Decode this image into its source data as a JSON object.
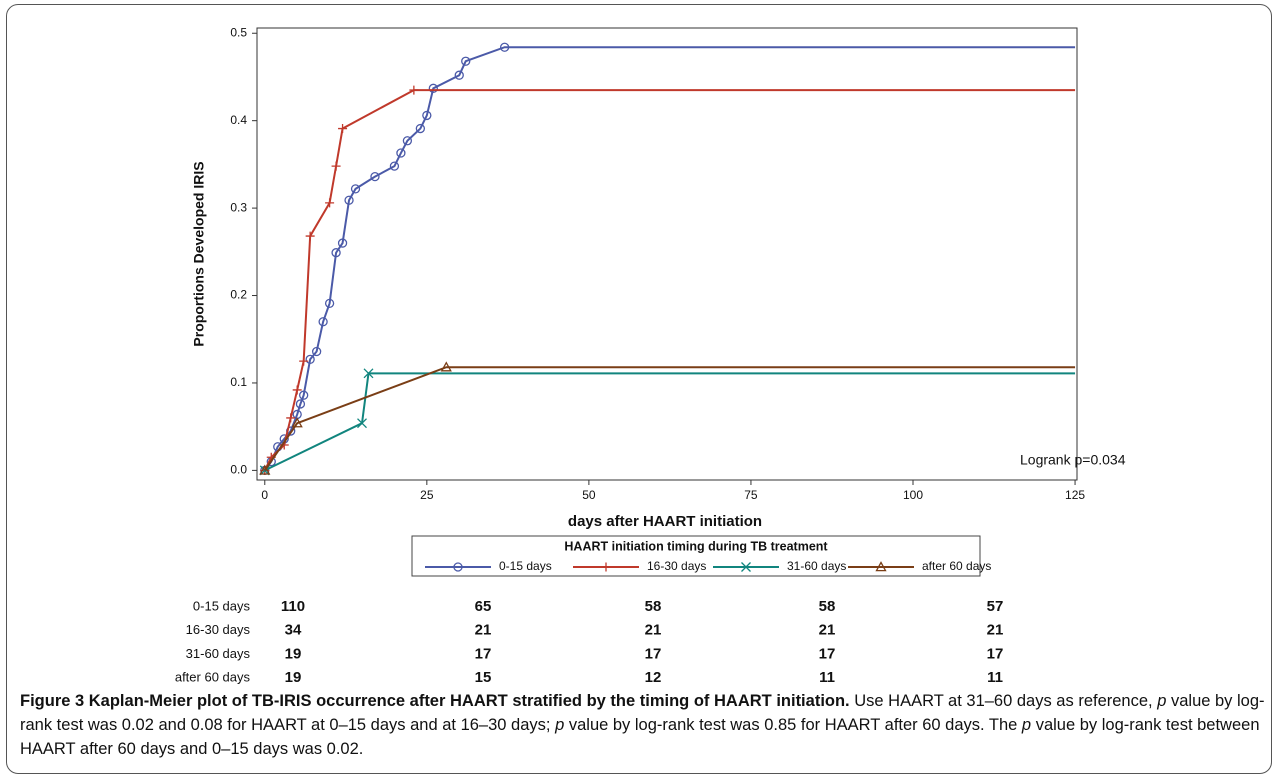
{
  "chart_data": {
    "type": "line",
    "x_label": "days after HAART initiation",
    "y_label": "Proportions Developed IRIS",
    "annotation": "Logrank p=0.034",
    "legend_title": "HAART initiation timing during TB treatment",
    "legend": "bottom",
    "xlim": [
      -1.2,
      125.3
    ],
    "ylim": [
      -0.011,
      0.506
    ],
    "xticks": [
      0,
      25,
      50,
      75,
      100,
      125
    ],
    "yticks": [
      {
        "value": 0,
        "label": "0.0"
      },
      0.1,
      0.2,
      0.3,
      0.4,
      0.5
    ],
    "series": [
      {
        "name": "0-15 days",
        "color": "#4b5aa8",
        "marker": "circle",
        "x": [
          0,
          1,
          2,
          3,
          4,
          5,
          5.5,
          6,
          7,
          8,
          9,
          10,
          11,
          12,
          13,
          14,
          17,
          20,
          21,
          22,
          24,
          25,
          26,
          30,
          31,
          37,
          125
        ],
        "values": [
          0,
          0.01,
          0.027,
          0.036,
          0.045,
          0.064,
          0.076,
          0.086,
          0.127,
          0.136,
          0.17,
          0.191,
          0.249,
          0.26,
          0.309,
          0.322,
          0.336,
          0.348,
          0.363,
          0.377,
          0.391,
          0.406,
          0.437,
          0.452,
          0.468,
          0.484,
          0.484
        ]
      },
      {
        "name": "16-30 days",
        "color": "#c0392b",
        "marker": "plus",
        "x": [
          0,
          1,
          3,
          4,
          5,
          6,
          7,
          10,
          11,
          12,
          23,
          125
        ],
        "values": [
          0,
          0.015,
          0.029,
          0.06,
          0.092,
          0.125,
          0.268,
          0.306,
          0.348,
          0.391,
          0.435,
          0.435
        ]
      },
      {
        "name": "31-60 days",
        "color": "#11857e",
        "marker": "x",
        "x": [
          0,
          15,
          16,
          125
        ],
        "values": [
          0,
          0.054,
          0.111,
          0.111
        ]
      },
      {
        "name": "after 60 days",
        "color": "#7a3e16",
        "marker": "triangle",
        "x": [
          0,
          5,
          28,
          125
        ],
        "values": [
          0,
          0.054,
          0.118,
          0.118
        ]
      }
    ]
  },
  "risk_table": {
    "rows": [
      {
        "label": "0-15 days",
        "values": [
          110,
          65,
          58,
          58,
          57
        ]
      },
      {
        "label": "16-30 days",
        "values": [
          34,
          21,
          21,
          21,
          21
        ]
      },
      {
        "label": "31-60 days",
        "values": [
          19,
          17,
          17,
          17,
          17
        ]
      },
      {
        "label": "after 60 days",
        "values": [
          19,
          15,
          12,
          11,
          11
        ]
      }
    ]
  },
  "caption": {
    "runs": [
      "Figure 3 Kaplan-Meier plot of TB-IRIS occurrence after HAART stratified by the timing of HAART initiation.",
      " Use HAART at 31–60 days as reference, ",
      "p",
      " value by log-rank test was 0.02 and 0.08 for HAART at 0–15 days and at 16–30 days; ",
      "p",
      " value by log-rank test was 0.85 for HAART after 60 days. The ",
      "p",
      " value by log-rank test between HAART after 60 days and 0–15 days was 0.02."
    ]
  }
}
